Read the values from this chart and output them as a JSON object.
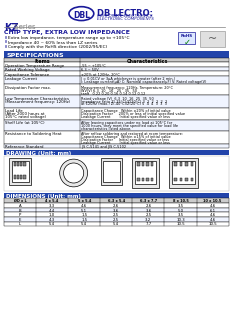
{
  "title_series": "KZ",
  "title_series_suffix": " Series",
  "chip_type_title": "CHIP TYPE, EXTRA LOW IMPEDANCE",
  "features": [
    "Extra low impedance, temperature range up to +105°C",
    "Impedance 40 ~ 60% less than LZ series",
    "Comply with the RoHS directive (2002/95/EC)"
  ],
  "specs_header": "SPECIFICATIONS",
  "specs_col1": "Items",
  "specs_col2": "Characteristics",
  "spec_rows": [
    [
      "Operation Temperature Range",
      "-55 ~ +105°C"
    ],
    [
      "Rated Working Voltage",
      "6.3 ~ 50V"
    ],
    [
      "Capacitance Tolerance",
      "±20% at 120Hz, 20°C"
    ],
    [
      "Leakage Current",
      "I = 0.01CV or 3μA whichever is greater (after 2 minutes)\nI: Leakage current (μA)  C: Nominal capacitance (μF)  V: Rated voltage (V)"
    ],
    [
      "Dissipation Factor max.",
      "Measurement frequency: 120Hz, Temperature: 20°C\nWV(V)    6.3    10    16    25    35    50\ntanδ     0.22   0.20  0.16  0.14  0.12  0.12"
    ],
    [
      "Low Temperature Characteristics\n(Measurement frequency: 120Hz)",
      "Rated voltage (V)    6.3   10   16   25   35   50\nImpedance ratio  Z(-25°C)/Z(20°C)    3     2    2    2    2    2\nat 120Hz (max.)  Z(-40°C)/Z(20°C)    5     4    4    3    3    3"
    ],
    [
      "Load Life\n(After 2000 hours (1000 hrs) at the 1A,\n1%, 1A (40%) indication of the rated\nvoltage at 105°C, AC=ripples meet the\nstandard rated ripples current)",
      "Capacitance Change    Within ±20% of initial value\nDissipation Factor      200% or less of initial specified value\nLeakage Current         Initial specified value or less"
    ],
    [
      "Shelf Life (at 105°C)",
      "After leaving capacitors under no load at 105°C for 1000 hours, they meet the specified value\nfor load life characteristics listed above."
    ],
    [
      "Resistance to Soldering Heat",
      "After reflow soldering according to Reflow Soldering Condition (see page 8) and restored at\nroom temperature, they must meet the characteristics requirements listed as follows:\nCapacitance Change    Within ±15% of initial value\nDissipation Factor      Initial specified value or less\nLeakage Current         Initial specified value or less"
    ],
    [
      "Reference Standard",
      "JIS C-5141 and JIS C-5102"
    ]
  ],
  "drawing_header": "DRAWING (Unit: mm)",
  "dimensions_header": "DIMENSIONS (Unit: mm)",
  "dim_col_headers": [
    "ØD x L",
    "4 x 5.4",
    "5 x 5.4",
    "6.3 x 5.4",
    "6.3 x 7.7",
    "8 x 10.5",
    "10 x 10.5"
  ],
  "dim_rows": [
    [
      "A",
      "3.3",
      "4.6",
      "2.6",
      "2.6",
      "3.5",
      "4.6"
    ],
    [
      "B",
      "4.4",
      "5.1",
      "3.6",
      "3.6",
      "5.0",
      "6.1"
    ],
    [
      "P",
      "1.0",
      "1.5",
      "2.5",
      "2.5",
      "3.5",
      "4.6"
    ],
    [
      "E",
      "4.3",
      "1.5",
      "2.5",
      "3.2",
      "10.3",
      "4.6"
    ],
    [
      "L",
      "5.4",
      "5.4",
      "5.4",
      "7.7",
      "10.5",
      "10.5"
    ]
  ],
  "blue_color": "#1a1a9a",
  "header_blue": "#1f3a8a",
  "table_header_blue": "#2244aa",
  "light_blue_bg": "#dde8ff",
  "bg_white": "#ffffff",
  "brand_blue": "#1a3a9a"
}
